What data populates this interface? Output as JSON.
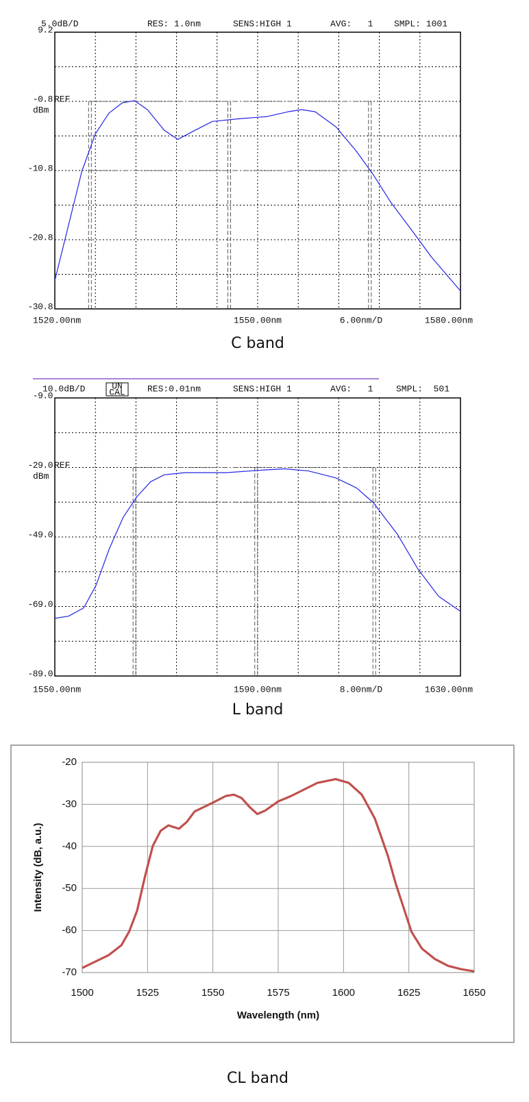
{
  "chart_data": [
    {
      "type": "line",
      "caption": "C band",
      "header": [
        "5.0dB/D",
        "RES: 1.0nm",
        "SENS:HIGH 1",
        "AVG:   1",
        "SMPL: 1001"
      ],
      "ref_label": "REF",
      "unit": "dBm",
      "x_division": "6.00nm/D",
      "xlim": [
        1520,
        1580
      ],
      "ylim": [
        -30.8,
        9.2
      ],
      "xticks": [
        {
          "value": 1520,
          "label": "1520.00nm"
        },
        {
          "value": 1550,
          "label": "1550.00nm"
        },
        {
          "value": 1580,
          "label": "1580.00nm"
        }
      ],
      "yticks": [
        9.2,
        -0.8,
        -10.8,
        -20.8,
        -30.8
      ],
      "grid_x": [
        1526,
        1532,
        1538,
        1544,
        1550,
        1556,
        1562,
        1568,
        1574
      ],
      "grid_y": [
        4.2,
        -0.8,
        -5.8,
        -10.8,
        -15.8,
        -20.8,
        -25.8
      ],
      "marker_x": [
        1525.2,
        1545.8,
        1566.6
      ],
      "marker_y": [
        -0.8,
        -10.8
      ],
      "color": "#2323e6",
      "x": [
        1520,
        1522,
        1524,
        1526,
        1528,
        1530,
        1531.8,
        1533.7,
        1536.2,
        1538.2,
        1540.3,
        1543.3,
        1547.4,
        1551.4,
        1554.5,
        1556.5,
        1558.5,
        1561.6,
        1564.6,
        1567.1,
        1569.7,
        1572.7,
        1575.7,
        1580
      ],
      "values": [
        -26.7,
        -18.8,
        -10.9,
        -5.5,
        -2.5,
        -1.0,
        -0.7,
        -2.0,
        -5.0,
        -6.3,
        -5.2,
        -3.7,
        -3.3,
        -3.0,
        -2.3,
        -2.0,
        -2.3,
        -4.5,
        -8.0,
        -11.4,
        -15.4,
        -19.3,
        -23.3,
        -28.2
      ]
    },
    {
      "type": "line",
      "caption": "L band",
      "header": [
        "10.0dB/D",
        "RES:0.01nm",
        "SENS:HIGH 1",
        "AVG:   1",
        "SMPL:  501"
      ],
      "status_box": [
        "UN",
        "CAL"
      ],
      "ref_label": "REF",
      "unit": "dBm",
      "x_division": "8.00nm/D",
      "xlim": [
        1550,
        1630
      ],
      "ylim": [
        -89,
        -9
      ],
      "xticks": [
        {
          "value": 1550,
          "label": "1550.00nm"
        },
        {
          "value": 1590,
          "label": "1590.00nm"
        },
        {
          "value": 1630,
          "label": "1630.00nm"
        }
      ],
      "yticks": [
        {
          "value": -9,
          "label": "-9.0"
        },
        {
          "value": -29,
          "label": "-29.0"
        },
        {
          "value": -49,
          "label": "-49.0"
        },
        {
          "value": -69,
          "label": "-69.0"
        },
        {
          "value": -89,
          "label": "-89.0"
        }
      ],
      "grid_x": [
        1558,
        1566,
        1574,
        1582,
        1590,
        1598,
        1606,
        1614,
        1622
      ],
      "grid_y": [
        -19,
        -29,
        -39,
        -49,
        -59,
        -69,
        -79
      ],
      "marker_x": [
        1565.7,
        1589.7,
        1613
      ],
      "marker_y": [
        -29,
        -39
      ],
      "color": "#2323e6",
      "x": [
        1550,
        1552.7,
        1555.7,
        1558.1,
        1560.8,
        1563.5,
        1566.2,
        1568.9,
        1571.6,
        1575.7,
        1583.8,
        1590.5,
        1595.3,
        1600,
        1605.4,
        1609.5,
        1612.8,
        1617.6,
        1621.6,
        1625.7,
        1630
      ],
      "values": [
        -72.4,
        -71.8,
        -69.4,
        -63,
        -52.2,
        -43.3,
        -37.4,
        -33.1,
        -31.1,
        -30.5,
        -30.5,
        -29.8,
        -29.4,
        -30,
        -32,
        -34.9,
        -39.1,
        -48.3,
        -58.2,
        -66.1,
        -70.4
      ]
    },
    {
      "type": "line",
      "caption": "CL band",
      "x_label": "Wavelength (nm)",
      "y_label": "Intensity (dB, a.u.)",
      "xlim": [
        1500,
        1650
      ],
      "ylim": [
        -70,
        -20
      ],
      "xticks": [
        1500,
        1525,
        1550,
        1575,
        1600,
        1625,
        1650
      ],
      "yticks": [
        -20,
        -30,
        -40,
        -50,
        -60,
        -70
      ],
      "grid": true,
      "color": "#c0504d",
      "x": [
        1500,
        1510,
        1515,
        1518,
        1521,
        1524,
        1527,
        1530,
        1533,
        1537,
        1540,
        1543,
        1550,
        1555,
        1558,
        1561,
        1564,
        1567,
        1570,
        1575,
        1580,
        1590,
        1597,
        1602,
        1607,
        1612,
        1617,
        1620,
        1623,
        1626,
        1630,
        1635,
        1640,
        1645,
        1650
      ],
      "values": [
        -68.9,
        -65.9,
        -63.5,
        -60.2,
        -55.3,
        -47.2,
        -39.9,
        -36.3,
        -35,
        -35.8,
        -34.2,
        -31.7,
        -29.6,
        -28,
        -27.7,
        -28.5,
        -30.6,
        -32.3,
        -31.5,
        -29.3,
        -28,
        -24.9,
        -24,
        -24.9,
        -27.7,
        -33.4,
        -42.3,
        -48.9,
        -54.6,
        -60.3,
        -64.3,
        -66.8,
        -68.4,
        -69.2,
        -69.7
      ]
    }
  ]
}
